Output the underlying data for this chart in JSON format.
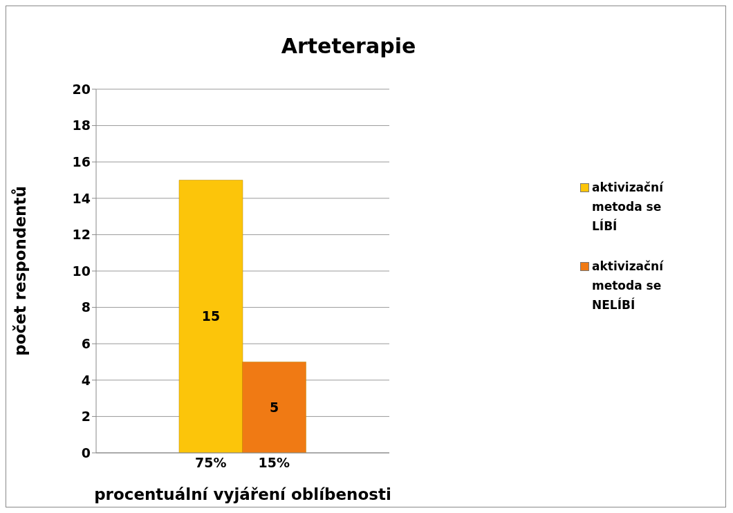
{
  "chart_data": {
    "type": "bar",
    "title": "Arteterapie",
    "xlabel": "procentuální vyjáření oblíbenosti",
    "ylabel": "počet respondentů",
    "categories": [
      "75%",
      "15%"
    ],
    "series": [
      {
        "name": "aktivizační metoda se LÍBÍ",
        "color": "#fcc50a",
        "values": [
          15,
          null
        ]
      },
      {
        "name": "aktivizační metoda se NELÍBÍ",
        "color": "#f07a14",
        "values": [
          null,
          5
        ]
      }
    ],
    "stacked": true,
    "ylim": [
      0,
      20
    ],
    "yticks": [
      0,
      2,
      4,
      6,
      8,
      10,
      12,
      14,
      16,
      18,
      20
    ],
    "grid": "y",
    "legend": "right",
    "data_labels": true
  }
}
